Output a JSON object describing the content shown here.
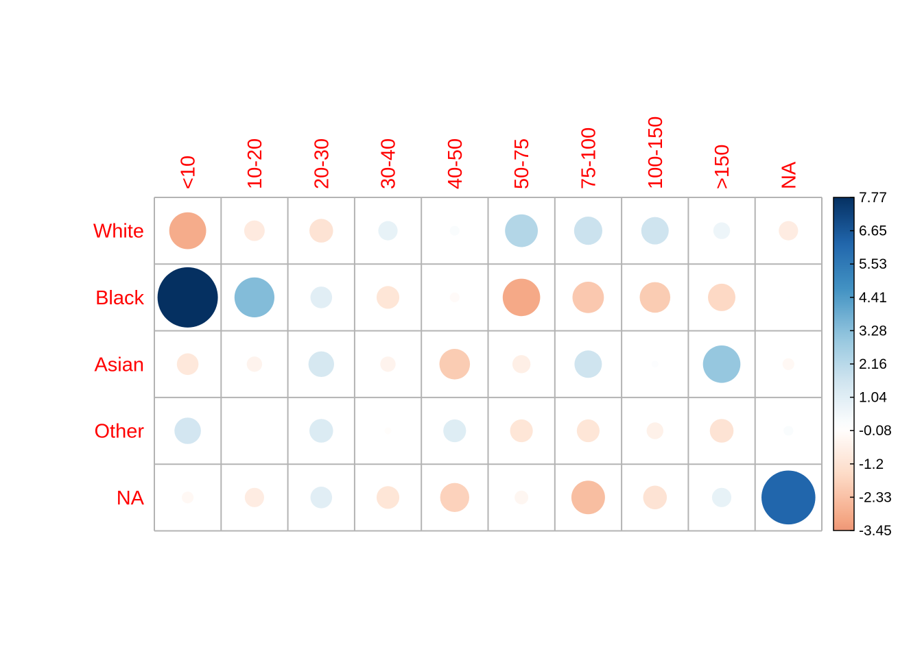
{
  "chart_data": {
    "type": "heatmap",
    "title": "",
    "subtitle": "",
    "rows": [
      "White",
      "Black",
      "Asian",
      "Other",
      "NA"
    ],
    "columns": [
      "<10",
      "10-20",
      "20-30",
      "30-40",
      "40-50",
      "50-75",
      "75-100",
      "100-150",
      ">150",
      "NA"
    ],
    "values": [
      [
        -2.9,
        -0.9,
        -1.2,
        0.8,
        0.2,
        2.3,
        1.7,
        1.6,
        0.6,
        -0.8
      ],
      [
        7.77,
        3.4,
        1.0,
        -1.1,
        -0.2,
        -3.0,
        -2.1,
        -2.0,
        -1.6,
        0.02
      ],
      [
        -1.0,
        -0.5,
        1.4,
        -0.5,
        -2.0,
        -0.7,
        1.6,
        0.1,
        3.0,
        -0.3
      ],
      [
        1.5,
        0.02,
        1.2,
        -0.1,
        1.1,
        -1.1,
        -1.1,
        -0.6,
        -1.2,
        0.2
      ],
      [
        -0.3,
        -0.8,
        1.0,
        -1.1,
        -1.8,
        -0.4,
        -2.4,
        -1.2,
        0.8,
        6.2
      ]
    ],
    "legend": {
      "ticks": [
        "7.77",
        "6.65",
        "5.53",
        "4.41",
        "3.28",
        "2.16",
        "1.04",
        "-0.08",
        "-1.2",
        "-2.33",
        "-3.45"
      ],
      "min": -3.45,
      "max": 7.77,
      "placement": "right"
    },
    "colors": {
      "scale": [
        "#67001f",
        "#b2182b",
        "#d6604d",
        "#f4a582",
        "#fddbc7",
        "#ffffff",
        "#d1e5f0",
        "#92c5de",
        "#4393c3",
        "#2166ac",
        "#053061"
      ],
      "labels": "#ff0000",
      "grid": "#b3b3b3"
    },
    "grid": true
  }
}
